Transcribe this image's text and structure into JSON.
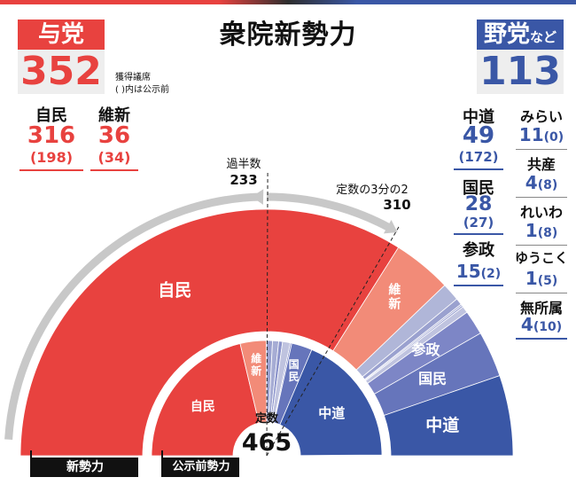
{
  "title": "衆院新勢力",
  "ruling": {
    "label": "与党",
    "total": "352",
    "note_line1": "獲得議席",
    "note_line2": "( )内は公示前"
  },
  "opposition": {
    "label_main": "野党",
    "label_suffix": "など",
    "total": "113"
  },
  "ruling_parties": [
    {
      "name": "自民",
      "seats": "316",
      "prev": "(198)"
    },
    {
      "name": "維新",
      "seats": "36",
      "prev": "(34)"
    }
  ],
  "opposition_parties_left": [
    {
      "name": "中道",
      "seats": "49",
      "prev": "(172)"
    },
    {
      "name": "国民",
      "seats": "28",
      "prev": "(27)"
    },
    {
      "name": "参政",
      "seats": "15",
      "prev": "(2)"
    }
  ],
  "opposition_parties_right": [
    {
      "name": "みらい",
      "seats": "11",
      "prev": "(0)"
    },
    {
      "name": "共産",
      "seats": "4",
      "prev": "(8)"
    },
    {
      "name": "れいわ",
      "seats": "1",
      "prev": "(8)"
    },
    {
      "name": "ゆうこく",
      "seats": "1",
      "prev": "(5)"
    },
    {
      "name": "無所属",
      "seats": "4",
      "prev": "(10)"
    }
  ],
  "annotations": {
    "majority_label": "過半数",
    "majority_value": "233",
    "twothirds_label": "定数の3分の2",
    "twothirds_value": "310",
    "total_label": "定数",
    "total_value": "465"
  },
  "legend": {
    "new": "新勢力",
    "prev": "公示前勢力"
  },
  "colors": {
    "ldp": "#e8423f",
    "ishin": "#f28b78",
    "opposition": "#3a57a6",
    "kokumin": "#6675bb",
    "sansei": "#7d86c6",
    "small_parties": "#b0b6d8",
    "arrow": "#c8c8c8"
  },
  "chart_data": {
    "type": "pie",
    "layout": "semicircle",
    "total_seats": 465,
    "thresholds": [
      {
        "label": "過半数",
        "value": 233
      },
      {
        "label": "定数の3分の2",
        "value": 310
      }
    ],
    "rings": [
      {
        "name": "新勢力",
        "slices": [
          {
            "label": "自民",
            "value": 316
          },
          {
            "label": "維新",
            "value": 36
          },
          {
            "label": "みらい",
            "value": 11
          },
          {
            "label": "共産",
            "value": 4
          },
          {
            "label": "れいわ",
            "value": 1
          },
          {
            "label": "ゆうこく",
            "value": 1
          },
          {
            "label": "無所属",
            "value": 4
          },
          {
            "label": "参政",
            "value": 15
          },
          {
            "label": "国民",
            "value": 28
          },
          {
            "label": "中道",
            "value": 49
          }
        ]
      },
      {
        "name": "公示前勢力",
        "slices": [
          {
            "label": "自民",
            "value": 198
          },
          {
            "label": "維新",
            "value": 34
          },
          {
            "label": "みらい",
            "value": 0
          },
          {
            "label": "共産",
            "value": 8
          },
          {
            "label": "れいわ",
            "value": 8
          },
          {
            "label": "ゆうこく",
            "value": 5
          },
          {
            "label": "無所属",
            "value": 10
          },
          {
            "label": "参政",
            "value": 2
          },
          {
            "label": "国民",
            "value": 27
          },
          {
            "label": "中道",
            "value": 172
          }
        ]
      }
    ]
  }
}
